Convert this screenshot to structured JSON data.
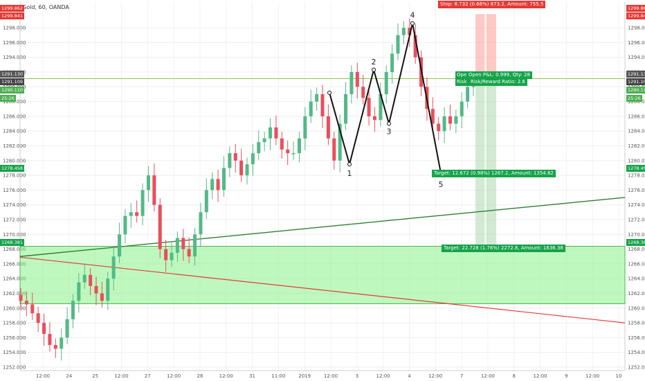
{
  "header": {
    "symbol": "Gold, 60, OANDA"
  },
  "colors": {
    "up": "#53b987",
    "down": "#eb4d5c",
    "zone": "#7ff27f",
    "trend_up": "#2e7d32",
    "trend_down": "#e53935",
    "pattern": "#111111"
  },
  "left_badges": {
    "price_a": "1299.862",
    "price_b": "1299.841",
    "price_c": "1291.130",
    "price_d": "1291.109",
    "price_e": "1290.110",
    "countdown": "25:26",
    "price_f": "1278.458",
    "price_g": "1268.381"
  },
  "right_badges": {
    "price_a": "1299.862",
    "price_b": "1299.841",
    "price_c": "1291.130",
    "price_d": "1291.109",
    "price_e": "1290.110",
    "countdown": "25:26",
    "price_f": "1278.458",
    "price_g": "1268.381"
  },
  "position": {
    "stop": "Stop: 8.732 (0.68%) 873.2, Amount: 755.5",
    "pnl_prefix": "Open",
    "pnl": "Open P&L: 0.999, Qty: 28",
    "risk_prefix": "Risk",
    "risk": "Risk/Reward Ratio: 2.6",
    "target1": "Target: 12.672 (0.98%) 1267.2, Amount: 1354.82",
    "target2": "Target: 22.728 (1.76%) 2272.8, Amount: 1636.38"
  },
  "pattern_labels": [
    "1",
    "2",
    "3",
    "4",
    "5"
  ],
  "chart_data": {
    "type": "candlestick",
    "title": "Gold, 60, OANDA",
    "ylim": [
      1251,
      1300.5
    ],
    "y_ticks": [
      "1252.000",
      "1254.000",
      "1256.000",
      "1258.000",
      "1260.000",
      "1262.000",
      "1264.000",
      "1266.000",
      "1268.000",
      "1270.000",
      "1272.000",
      "1274.000",
      "1276.000",
      "1278.000",
      "1280.000",
      "1282.000",
      "1284.000",
      "1286.000",
      "1288.000",
      "1290.000",
      "1292.000",
      "1294.000",
      "1296.000",
      "1298.000"
    ],
    "x_ticks": [
      "12:00",
      "24",
      "25",
      "12:00",
      "27",
      "12:00",
      "28",
      "12:00",
      "31",
      "11:00",
      "2019",
      "12:00",
      "3",
      "12:00",
      "4",
      "12:00",
      "7",
      "12:00",
      "8",
      "12:00",
      "9",
      "12:00",
      "10"
    ],
    "close_series": [
      1261.0,
      1260.5,
      1259.3,
      1258.0,
      1256.5,
      1255.0,
      1254.5,
      1256.0,
      1258.5,
      1261.0,
      1263.5,
      1264.5,
      1263.0,
      1262.0,
      1261.0,
      1264.0,
      1267.0,
      1270.0,
      1272.5,
      1273.0,
      1272.5,
      1276.0,
      1278.0,
      1274.0,
      1268.0,
      1266.5,
      1267.5,
      1269.5,
      1268.0,
      1267.0,
      1270.0,
      1273.0,
      1276.0,
      1277.5,
      1276.0,
      1279.0,
      1281.0,
      1280.0,
      1278.0,
      1279.5,
      1281.0,
      1282.5,
      1283.0,
      1284.5,
      1283.0,
      1281.5,
      1281.0,
      1281.0,
      1283.0,
      1286.0,
      1288.0,
      1289.0,
      1286.0,
      1283.0,
      1280.0,
      1285.0,
      1289.0,
      1292.0,
      1290.0,
      1288.5,
      1286.0,
      1285.5,
      1289.0,
      1292.0,
      1294.5,
      1297.0,
      1298.0,
      1297.0,
      1294.0,
      1290.0,
      1287.0,
      1285.0,
      1284.0,
      1286.0,
      1285.0,
      1286.0,
      1288.0,
      1290.0,
      1290.1
    ],
    "pattern_points": [
      {
        "label": "",
        "price": 1289.2
      },
      {
        "label": "1",
        "price": 1279.5
      },
      {
        "label": "2",
        "price": 1292.3
      },
      {
        "label": "3",
        "price": 1285.0
      },
      {
        "label": "4",
        "price": 1298.6
      },
      {
        "label": "5",
        "price": 1278.3
      }
    ],
    "zone": {
      "top": 1268.38,
      "bottom": 1260.6
    },
    "trend_up": {
      "start": 1267.0,
      "end": 1275.0
    },
    "trend_down": {
      "start": 1266.9,
      "end": 1258.0
    },
    "current_price": 1291.109
  }
}
